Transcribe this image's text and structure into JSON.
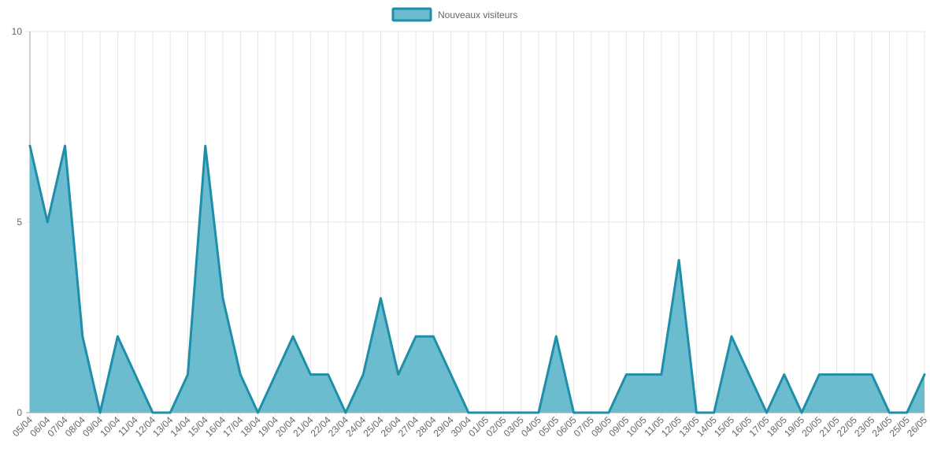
{
  "chart_data": {
    "type": "area",
    "title": "",
    "xlabel": "",
    "ylabel": "",
    "ylim": [
      0,
      10
    ],
    "yticks": [
      0,
      5,
      10
    ],
    "grid": true,
    "legend_position": "top-center",
    "colors": {
      "line": "#1f8ea8",
      "fill": "#6bbccf",
      "grid": "#e6e6e6",
      "axis": "#a0a0a0",
      "text": "#666666"
    },
    "categories": [
      "05/04",
      "06/04",
      "07/04",
      "08/04",
      "09/04",
      "10/04",
      "11/04",
      "12/04",
      "13/04",
      "14/04",
      "15/04",
      "16/04",
      "17/04",
      "18/04",
      "19/04",
      "20/04",
      "21/04",
      "22/04",
      "23/04",
      "24/04",
      "25/04",
      "26/04",
      "27/04",
      "28/04",
      "29/04",
      "30/04",
      "01/05",
      "02/05",
      "03/05",
      "04/05",
      "05/05",
      "06/05",
      "07/05",
      "08/05",
      "09/05",
      "10/05",
      "11/05",
      "12/05",
      "13/05",
      "14/05",
      "15/05",
      "16/05",
      "17/05",
      "18/05",
      "19/05",
      "20/05",
      "21/05",
      "22/05",
      "23/05",
      "24/05",
      "25/05",
      "26/05"
    ],
    "series": [
      {
        "name": "Nouveaux visiteurs",
        "values": [
          7,
          5,
          7,
          2,
          0,
          2,
          1,
          0,
          0,
          1,
          7,
          3,
          1,
          0,
          1,
          2,
          1,
          1,
          0,
          1,
          3,
          1,
          2,
          2,
          1,
          0,
          0,
          0,
          0,
          0,
          2,
          0,
          0,
          0,
          1,
          1,
          1,
          4,
          0,
          0,
          2,
          1,
          0,
          1,
          0,
          1,
          1,
          1,
          1,
          0,
          0,
          1
        ]
      }
    ]
  }
}
